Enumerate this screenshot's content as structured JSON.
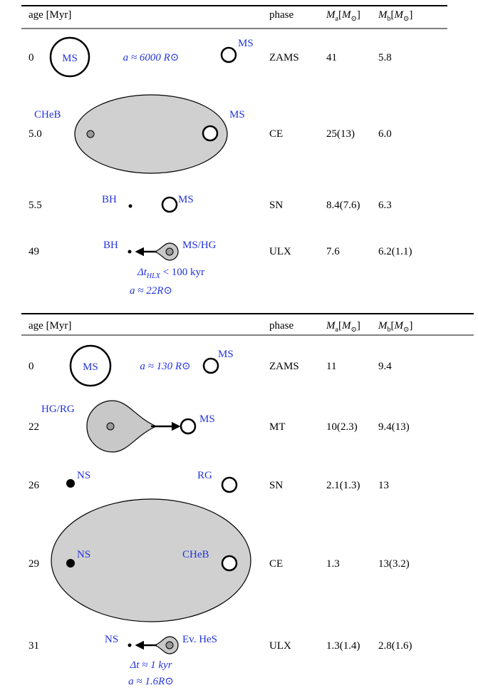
{
  "panels": [
    {
      "header": {
        "age": "age [Myr]",
        "phase": "phase",
        "mass_a": {
          "symbol": "M",
          "sub": "a",
          "open": "[",
          "unit": "M",
          "unit_sub": "⊙",
          "close": "]"
        },
        "mass_b": {
          "symbol": "M",
          "sub": "b",
          "open": "[",
          "unit": "M",
          "unit_sub": "⊙",
          "close": "]"
        }
      },
      "rows": [
        {
          "age": "0",
          "phase": "ZAMS",
          "mass_a": "41",
          "mass_b": "5.8",
          "labels": [
            "MS",
            "a ≈ 6000 R⊙",
            "MS"
          ]
        },
        {
          "age": "5.0",
          "phase": "CE",
          "mass_a": "25(13)",
          "mass_b": "6.0",
          "labels": [
            "CHeB",
            "MS"
          ]
        },
        {
          "age": "5.5",
          "phase": "SN",
          "mass_a": "8.4(7.6)",
          "mass_b": "6.3",
          "labels": [
            "BH",
            "MS"
          ]
        },
        {
          "age": "49",
          "phase": "ULX",
          "mass_a": "7.6",
          "mass_b": "6.2(1.1)",
          "labels": [
            "BH",
            "MS/HG"
          ],
          "notes": [
            [
              "Δt",
              "HLX",
              " < 100 kyr"
            ],
            "a ≈ 22R⊙"
          ]
        }
      ]
    },
    {
      "header": {
        "age": "age [Myr]",
        "phase": "phase",
        "mass_a": {
          "symbol": "M",
          "sub": "a",
          "open": "[",
          "unit": "M",
          "unit_sub": "⊙",
          "close": "]"
        },
        "mass_b": {
          "symbol": "M",
          "sub": "b",
          "open": "[",
          "unit": "M",
          "unit_sub": "⊙",
          "close": "]"
        }
      },
      "rows": [
        {
          "age": "0",
          "phase": "ZAMS",
          "mass_a": "11",
          "mass_b": "9.4",
          "labels": [
            "MS",
            "a ≈ 130 R⊙",
            "MS"
          ]
        },
        {
          "age": "22",
          "phase": "MT",
          "mass_a": "10(2.3)",
          "mass_b": "9.4(13)",
          "labels": [
            "HG/RG",
            "MS"
          ]
        },
        {
          "age": "26",
          "phase": "SN",
          "mass_a": "2.1(1.3)",
          "mass_b": "13",
          "labels": [
            "NS",
            "RG"
          ]
        },
        {
          "age": "29",
          "phase": "CE",
          "mass_a": "1.3",
          "mass_b": "13(3.2)",
          "labels": [
            "NS",
            "CHeB"
          ]
        },
        {
          "age": "31",
          "phase": "ULX",
          "mass_a": "1.3(1.4)",
          "mass_b": "2.8(1.6)",
          "labels": [
            "NS",
            "Ev. HeS"
          ],
          "notes": [
            "Δt ≈ 1 kyr",
            "a ≈ 1.6R⊙"
          ]
        }
      ]
    }
  ]
}
